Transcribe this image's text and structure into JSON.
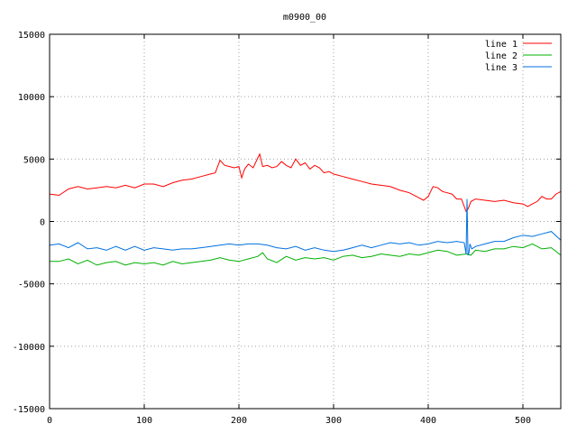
{
  "chart_data": {
    "type": "line",
    "title": "m0900_00",
    "xlim": [
      0,
      540
    ],
    "ylim": [
      -15000,
      15000
    ],
    "xticks": [
      0,
      100,
      200,
      300,
      400,
      500
    ],
    "yticks": [
      -15000,
      -10000,
      -5000,
      0,
      5000,
      10000,
      15000
    ],
    "grid": true,
    "legend_position": "top-right",
    "series": [
      {
        "name": "line 1",
        "color": "#ff0000",
        "x": [
          0,
          10,
          20,
          30,
          40,
          50,
          60,
          70,
          80,
          90,
          100,
          110,
          120,
          130,
          140,
          150,
          160,
          170,
          175,
          180,
          185,
          190,
          195,
          200,
          203,
          206,
          210,
          215,
          220,
          222,
          225,
          230,
          235,
          240,
          245,
          250,
          255,
          260,
          265,
          270,
          275,
          280,
          285,
          290,
          295,
          300,
          310,
          320,
          330,
          340,
          350,
          360,
          370,
          380,
          390,
          395,
          400,
          405,
          410,
          415,
          420,
          425,
          430,
          435,
          440,
          442,
          445,
          450,
          460,
          470,
          480,
          490,
          500,
          505,
          510,
          515,
          520,
          525,
          530,
          535,
          540
        ],
        "y": [
          2200,
          2100,
          2600,
          2800,
          2600,
          2700,
          2800,
          2700,
          2900,
          2700,
          3000,
          3000,
          2800,
          3100,
          3300,
          3400,
          3600,
          3800,
          3900,
          4900,
          4500,
          4400,
          4300,
          4400,
          3500,
          4200,
          4600,
          4300,
          5100,
          5400,
          4400,
          4500,
          4300,
          4400,
          4800,
          4500,
          4300,
          5000,
          4500,
          4700,
          4200,
          4500,
          4300,
          3900,
          4000,
          3800,
          3600,
          3400,
          3200,
          3000,
          2900,
          2800,
          2500,
          2300,
          1900,
          1700,
          2000,
          2800,
          2700,
          2400,
          2300,
          2200,
          1800,
          1800,
          800,
          1000,
          1600,
          1800,
          1700,
          1600,
          1700,
          1500,
          1400,
          1200,
          1400,
          1600,
          2000,
          1800,
          1800,
          2200,
          2400
        ]
      },
      {
        "name": "line 2",
        "color": "#00b000",
        "x": [
          0,
          10,
          20,
          30,
          40,
          50,
          60,
          70,
          80,
          90,
          100,
          110,
          120,
          130,
          140,
          150,
          160,
          170,
          180,
          190,
          200,
          210,
          220,
          225,
          230,
          240,
          250,
          260,
          270,
          280,
          290,
          300,
          310,
          320,
          330,
          340,
          350,
          360,
          370,
          380,
          390,
          400,
          410,
          420,
          430,
          440,
          445,
          450,
          460,
          470,
          480,
          490,
          500,
          510,
          520,
          530,
          540
        ],
        "y": [
          -3200,
          -3200,
          -3000,
          -3400,
          -3100,
          -3500,
          -3300,
          -3200,
          -3500,
          -3300,
          -3400,
          -3300,
          -3500,
          -3200,
          -3400,
          -3300,
          -3200,
          -3100,
          -2900,
          -3100,
          -3200,
          -3000,
          -2800,
          -2500,
          -3000,
          -3300,
          -2800,
          -3100,
          -2900,
          -3000,
          -2900,
          -3100,
          -2800,
          -2700,
          -2900,
          -2800,
          -2600,
          -2700,
          -2800,
          -2600,
          -2700,
          -2500,
          -2300,
          -2400,
          -2700,
          -2600,
          -2700,
          -2300,
          -2400,
          -2200,
          -2200,
          -2000,
          -2100,
          -1800,
          -2200,
          -2100,
          -2700
        ]
      },
      {
        "name": "line 3",
        "color": "#0070e0",
        "x": [
          0,
          10,
          20,
          30,
          40,
          50,
          60,
          70,
          80,
          90,
          100,
          110,
          120,
          130,
          140,
          150,
          160,
          170,
          180,
          190,
          200,
          210,
          220,
          230,
          240,
          250,
          260,
          270,
          280,
          290,
          300,
          310,
          320,
          330,
          340,
          350,
          360,
          370,
          380,
          390,
          400,
          410,
          420,
          430,
          438,
          440,
          441,
          442,
          443,
          444,
          446,
          450,
          460,
          470,
          480,
          490,
          500,
          510,
          520,
          530,
          540
        ],
        "y": [
          -1900,
          -1800,
          -2100,
          -1700,
          -2200,
          -2100,
          -2300,
          -2000,
          -2300,
          -2000,
          -2300,
          -2100,
          -2200,
          -2300,
          -2200,
          -2200,
          -2100,
          -2000,
          -1900,
          -1800,
          -1900,
          -1800,
          -1800,
          -1900,
          -2100,
          -2200,
          -2000,
          -2300,
          -2100,
          -2300,
          -2400,
          -2300,
          -2100,
          -1900,
          -2100,
          -1900,
          -1700,
          -1800,
          -1700,
          -1900,
          -1800,
          -1600,
          -1700,
          -1600,
          -1700,
          -2600,
          1800,
          -2700,
          -2500,
          -1800,
          -2200,
          -2000,
          -1800,
          -1600,
          -1600,
          -1300,
          -1100,
          -1200,
          -1000,
          -800,
          -1500
        ]
      }
    ]
  }
}
